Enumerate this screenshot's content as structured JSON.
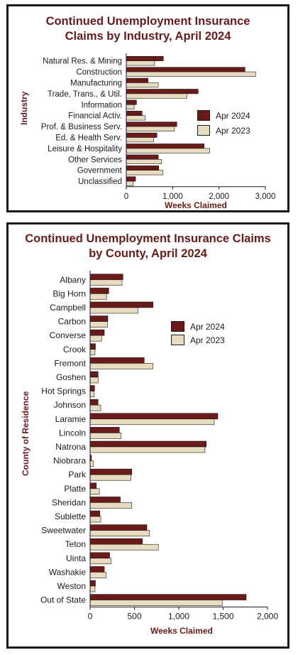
{
  "colors": {
    "apr_2024": "#6b1a1a",
    "apr_2023": "#e8dcc0",
    "title": "#6b1a1a",
    "axis": "#1a1a1a"
  },
  "chart_data": [
    {
      "type": "bar",
      "orientation": "horizontal",
      "title": "Continued Unemployment Insurance Claims by Industry, April 2024",
      "xlabel": "Weeks Claimed",
      "ylabel": "Industry",
      "xlim": [
        0,
        3000
      ],
      "xticks": [
        "0",
        "1,000",
        "2,000",
        "3,000"
      ],
      "grid": false,
      "legend_placement": "right",
      "categories": [
        "Natural Res. & Mining",
        "Construction",
        "Manufacturing",
        "Trade, Trans., & Util.",
        "Information",
        "Financial Activ.",
        "Prof. & Business Serv.",
        "Ed. & Health Serv.",
        "Leisure & Hospitality",
        "Other Services",
        "Government",
        "Unclassified"
      ],
      "series": [
        {
          "name": "Apr 2024",
          "values": [
            800,
            2560,
            470,
            1550,
            220,
            340,
            1090,
            660,
            1680,
            690,
            700,
            200
          ]
        },
        {
          "name": "Apr 2023",
          "values": [
            610,
            2790,
            690,
            1310,
            170,
            410,
            1040,
            590,
            1800,
            760,
            790,
            150
          ]
        }
      ]
    },
    {
      "type": "bar",
      "orientation": "horizontal",
      "title": "Continued Unemployment Insurance Claims by County, April 2024",
      "xlabel": "Weeks Claimed",
      "ylabel": "County of Residence",
      "xlim": [
        0,
        2000
      ],
      "xticks": [
        "0",
        "500",
        "1,000",
        "1,500",
        "2,000"
      ],
      "grid": false,
      "legend_placement": "upper right",
      "categories": [
        "Albany",
        "Big Horn",
        "Campbell",
        "Carbon",
        "Converse",
        "Crook",
        "Fremont",
        "Goshen",
        "Hot Springs",
        "Johnson",
        "Laramie",
        "Lincoln",
        "Natrona",
        "Niobrara",
        "Park",
        "Platte",
        "Sheridan",
        "Sublette",
        "Sweetwater",
        "Teton",
        "Uinta",
        "Washakie",
        "Weston",
        "Out of State"
      ],
      "series": [
        {
          "name": "Apr 2024",
          "values": [
            370,
            210,
            710,
            200,
            160,
            60,
            610,
            90,
            50,
            90,
            1440,
            330,
            1310,
            15,
            470,
            70,
            340,
            110,
            640,
            590,
            220,
            160,
            60,
            1760
          ]
        },
        {
          "name": "Apr 2023",
          "values": [
            360,
            185,
            540,
            195,
            130,
            55,
            710,
            90,
            45,
            120,
            1400,
            350,
            1295,
            35,
            460,
            105,
            470,
            120,
            670,
            770,
            235,
            180,
            55,
            1490
          ]
        }
      ]
    }
  ]
}
